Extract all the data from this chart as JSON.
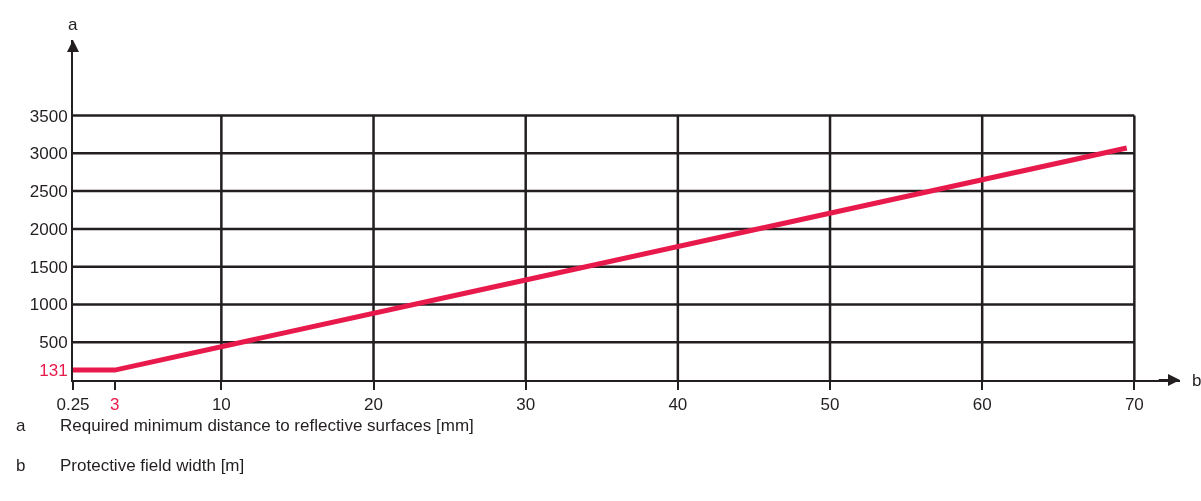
{
  "chart_data": {
    "type": "line",
    "xlabel": "b",
    "ylabel": "a",
    "x": [
      0.25,
      3,
      69.5
    ],
    "series": [
      {
        "color": "#e8194b",
        "values": [
          131,
          131,
          3070
        ]
      }
    ],
    "xlim": [
      0.25,
      73
    ],
    "ylim": [
      0,
      4500
    ],
    "xticks": [
      0.25,
      3,
      10,
      20,
      30,
      40,
      50,
      60,
      70
    ],
    "yticks": [
      131,
      500,
      1000,
      1500,
      2000,
      2500,
      3000,
      3500
    ],
    "grid": true,
    "marker": "none",
    "line_style": "solid",
    "annotations": [
      "a\tRequired minimum distance to reflective surfaces [mm]",
      "b\tProtective field width [m]"
    ]
  }
}
